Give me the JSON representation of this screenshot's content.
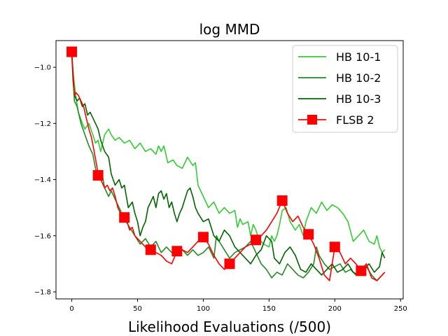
{
  "chart_data": {
    "type": "line",
    "title": "log MMD",
    "xlabel": "Likelihood Evaluations (/500)",
    "ylabel": "",
    "xlim": [
      -12,
      252
    ],
    "ylim": [
      -1.825,
      -0.905
    ],
    "xticks": [
      0,
      50,
      100,
      150,
      200,
      250
    ],
    "yticks": [
      -1.0,
      -1.2,
      -1.4,
      -1.6,
      -1.8
    ],
    "xtick_labels": [
      "0",
      "50",
      "100",
      "150",
      "200",
      "250"
    ],
    "ytick_labels": [
      "−1.0",
      "−1.2",
      "−1.4",
      "−1.6",
      "−1.8"
    ],
    "legend_position": "top-right",
    "series": [
      {
        "name": "HB 10-1",
        "color": "#32cd32",
        "marker": "none",
        "points": [
          [
            0,
            -0.95
          ],
          [
            1,
            -1.02
          ],
          [
            3,
            -1.1
          ],
          [
            5,
            -1.16
          ],
          [
            8,
            -1.2
          ],
          [
            10,
            -1.22
          ],
          [
            13,
            -1.2
          ],
          [
            16,
            -1.24
          ],
          [
            18,
            -1.27
          ],
          [
            20,
            -1.26
          ],
          [
            22,
            -1.3
          ],
          [
            25,
            -1.24
          ],
          [
            28,
            -1.22
          ],
          [
            30,
            -1.24
          ],
          [
            33,
            -1.26
          ],
          [
            36,
            -1.25
          ],
          [
            40,
            -1.27
          ],
          [
            44,
            -1.26
          ],
          [
            48,
            -1.29
          ],
          [
            52,
            -1.27
          ],
          [
            56,
            -1.3
          ],
          [
            60,
            -1.29
          ],
          [
            64,
            -1.31
          ],
          [
            66,
            -1.28
          ],
          [
            68,
            -1.3
          ],
          [
            70,
            -1.28
          ],
          [
            73,
            -1.34
          ],
          [
            77,
            -1.33
          ],
          [
            80,
            -1.35
          ],
          [
            84,
            -1.36
          ],
          [
            88,
            -1.32
          ],
          [
            92,
            -1.35
          ],
          [
            94,
            -1.34
          ],
          [
            96,
            -1.42
          ],
          [
            100,
            -1.46
          ],
          [
            104,
            -1.5
          ],
          [
            108,
            -1.48
          ],
          [
            112,
            -1.52
          ],
          [
            116,
            -1.5
          ],
          [
            120,
            -1.52
          ],
          [
            124,
            -1.51
          ],
          [
            126,
            -1.57
          ],
          [
            128,
            -1.54
          ],
          [
            130,
            -1.56
          ],
          [
            134,
            -1.55
          ],
          [
            136,
            -1.6
          ],
          [
            138,
            -1.56
          ],
          [
            140,
            -1.58
          ],
          [
            142,
            -1.61
          ],
          [
            146,
            -1.63
          ],
          [
            150,
            -1.64
          ],
          [
            152,
            -1.6
          ],
          [
            154,
            -1.62
          ],
          [
            156,
            -1.6
          ],
          [
            158,
            -1.56
          ],
          [
            160,
            -1.51
          ],
          [
            163,
            -1.5
          ],
          [
            166,
            -1.55
          ],
          [
            170,
            -1.58
          ],
          [
            173,
            -1.56
          ],
          [
            176,
            -1.6
          ],
          [
            178,
            -1.55
          ],
          [
            182,
            -1.5
          ],
          [
            186,
            -1.52
          ],
          [
            190,
            -1.48
          ],
          [
            194,
            -1.51
          ],
          [
            198,
            -1.49
          ],
          [
            202,
            -1.5
          ],
          [
            206,
            -1.52
          ],
          [
            210,
            -1.55
          ],
          [
            214,
            -1.62
          ],
          [
            218,
            -1.6
          ],
          [
            222,
            -1.58
          ],
          [
            226,
            -1.62
          ],
          [
            230,
            -1.63
          ],
          [
            232,
            -1.6
          ],
          [
            234,
            -1.64
          ],
          [
            236,
            -1.66
          ],
          [
            238,
            -1.65
          ]
        ]
      },
      {
        "name": "HB 10-2",
        "color": "#228b22",
        "marker": "none",
        "points": [
          [
            0,
            -0.95
          ],
          [
            1,
            -1.03
          ],
          [
            2,
            -1.12
          ],
          [
            4,
            -1.14
          ],
          [
            7,
            -1.2
          ],
          [
            10,
            -1.24
          ],
          [
            13,
            -1.28
          ],
          [
            16,
            -1.31
          ],
          [
            18,
            -1.36
          ],
          [
            20,
            -1.4
          ],
          [
            23,
            -1.38
          ],
          [
            25,
            -1.43
          ],
          [
            28,
            -1.46
          ],
          [
            30,
            -1.44
          ],
          [
            33,
            -1.47
          ],
          [
            36,
            -1.5
          ],
          [
            40,
            -1.54
          ],
          [
            44,
            -1.57
          ],
          [
            48,
            -1.6
          ],
          [
            52,
            -1.63
          ],
          [
            56,
            -1.61
          ],
          [
            60,
            -1.64
          ],
          [
            64,
            -1.62
          ],
          [
            68,
            -1.66
          ],
          [
            72,
            -1.64
          ],
          [
            76,
            -1.66
          ],
          [
            80,
            -1.64
          ],
          [
            84,
            -1.65
          ],
          [
            88,
            -1.67
          ],
          [
            92,
            -1.65
          ],
          [
            96,
            -1.67
          ],
          [
            100,
            -1.66
          ],
          [
            104,
            -1.64
          ],
          [
            108,
            -1.68
          ],
          [
            110,
            -1.6
          ],
          [
            112,
            -1.62
          ],
          [
            116,
            -1.65
          ],
          [
            120,
            -1.68
          ],
          [
            124,
            -1.66
          ],
          [
            128,
            -1.65
          ],
          [
            132,
            -1.64
          ],
          [
            136,
            -1.62
          ],
          [
            140,
            -1.66
          ],
          [
            144,
            -1.7
          ],
          [
            148,
            -1.72
          ],
          [
            152,
            -1.75
          ],
          [
            156,
            -1.73
          ],
          [
            160,
            -1.74
          ],
          [
            164,
            -1.7
          ],
          [
            168,
            -1.72
          ],
          [
            172,
            -1.74
          ],
          [
            176,
            -1.75
          ],
          [
            180,
            -1.73
          ],
          [
            184,
            -1.7
          ],
          [
            186,
            -1.64
          ],
          [
            188,
            -1.67
          ],
          [
            192,
            -1.7
          ],
          [
            196,
            -1.72
          ],
          [
            200,
            -1.71
          ],
          [
            204,
            -1.7
          ],
          [
            208,
            -1.73
          ],
          [
            212,
            -1.72
          ],
          [
            216,
            -1.74
          ],
          [
            220,
            -1.73
          ],
          [
            224,
            -1.71
          ],
          [
            228,
            -1.74
          ],
          [
            232,
            -1.76
          ],
          [
            236,
            -1.74
          ],
          [
            238,
            -1.73
          ]
        ]
      },
      {
        "name": "HB 10-3",
        "color": "#006400",
        "marker": "none",
        "points": [
          [
            0,
            -0.95
          ],
          [
            1,
            -1.05
          ],
          [
            2,
            -1.1
          ],
          [
            4,
            -1.12
          ],
          [
            6,
            -1.11
          ],
          [
            8,
            -1.14
          ],
          [
            10,
            -1.13
          ],
          [
            12,
            -1.17
          ],
          [
            14,
            -1.16
          ],
          [
            16,
            -1.18
          ],
          [
            18,
            -1.2
          ],
          [
            20,
            -1.22
          ],
          [
            22,
            -1.26
          ],
          [
            25,
            -1.3
          ],
          [
            28,
            -1.32
          ],
          [
            30,
            -1.38
          ],
          [
            33,
            -1.42
          ],
          [
            36,
            -1.4
          ],
          [
            38,
            -1.43
          ],
          [
            40,
            -1.42
          ],
          [
            43,
            -1.5
          ],
          [
            46,
            -1.48
          ],
          [
            48,
            -1.52
          ],
          [
            50,
            -1.55
          ],
          [
            52,
            -1.6
          ],
          [
            54,
            -1.57
          ],
          [
            56,
            -1.55
          ],
          [
            58,
            -1.5
          ],
          [
            60,
            -1.48
          ],
          [
            62,
            -1.46
          ],
          [
            64,
            -1.5
          ],
          [
            66,
            -1.45
          ],
          [
            68,
            -1.44
          ],
          [
            70,
            -1.47
          ],
          [
            72,
            -1.45
          ],
          [
            74,
            -1.5
          ],
          [
            76,
            -1.48
          ],
          [
            78,
            -1.52
          ],
          [
            80,
            -1.55
          ],
          [
            82,
            -1.52
          ],
          [
            84,
            -1.5
          ],
          [
            86,
            -1.47
          ],
          [
            88,
            -1.44
          ],
          [
            90,
            -1.43
          ],
          [
            92,
            -1.46
          ],
          [
            94,
            -1.5
          ],
          [
            96,
            -1.52
          ],
          [
            100,
            -1.55
          ],
          [
            104,
            -1.54
          ],
          [
            108,
            -1.6
          ],
          [
            112,
            -1.62
          ],
          [
            116,
            -1.58
          ],
          [
            120,
            -1.6
          ],
          [
            124,
            -1.64
          ],
          [
            128,
            -1.66
          ],
          [
            132,
            -1.68
          ],
          [
            136,
            -1.7
          ],
          [
            140,
            -1.67
          ],
          [
            144,
            -1.65
          ],
          [
            148,
            -1.6
          ],
          [
            152,
            -1.62
          ],
          [
            154,
            -1.68
          ],
          [
            158,
            -1.7
          ],
          [
            162,
            -1.66
          ],
          [
            166,
            -1.64
          ],
          [
            170,
            -1.67
          ],
          [
            174,
            -1.72
          ],
          [
            178,
            -1.73
          ],
          [
            182,
            -1.7
          ],
          [
            186,
            -1.72
          ],
          [
            190,
            -1.74
          ],
          [
            194,
            -1.72
          ],
          [
            198,
            -1.7
          ],
          [
            202,
            -1.73
          ],
          [
            206,
            -1.72
          ],
          [
            210,
            -1.7
          ],
          [
            214,
            -1.73
          ],
          [
            218,
            -1.74
          ],
          [
            222,
            -1.72
          ],
          [
            226,
            -1.7
          ],
          [
            230,
            -1.73
          ],
          [
            234,
            -1.71
          ],
          [
            236,
            -1.66
          ],
          [
            238,
            -1.68
          ]
        ]
      },
      {
        "name": "FLSB 2",
        "color": "#ff0000",
        "marker": "square",
        "marker_x": [
          0,
          20,
          40,
          60,
          80,
          100,
          120,
          140,
          160,
          180,
          200,
          220
        ],
        "points": [
          [
            0,
            -0.945
          ],
          [
            1,
            -1.02
          ],
          [
            2,
            -1.1
          ],
          [
            3,
            -1.09
          ],
          [
            5,
            -1.1
          ],
          [
            7,
            -1.12
          ],
          [
            9,
            -1.14
          ],
          [
            11,
            -1.18
          ],
          [
            13,
            -1.22
          ],
          [
            15,
            -1.25
          ],
          [
            17,
            -1.3
          ],
          [
            19,
            -1.35
          ],
          [
            20,
            -1.385
          ],
          [
            22,
            -1.4
          ],
          [
            25,
            -1.43
          ],
          [
            27,
            -1.42
          ],
          [
            29,
            -1.44
          ],
          [
            31,
            -1.43
          ],
          [
            33,
            -1.46
          ],
          [
            35,
            -1.5
          ],
          [
            38,
            -1.53
          ],
          [
            40,
            -1.535
          ],
          [
            42,
            -1.55
          ],
          [
            44,
            -1.58
          ],
          [
            46,
            -1.57
          ],
          [
            48,
            -1.6
          ],
          [
            52,
            -1.62
          ],
          [
            56,
            -1.64
          ],
          [
            60,
            -1.65
          ],
          [
            64,
            -1.66
          ],
          [
            68,
            -1.67
          ],
          [
            72,
            -1.69
          ],
          [
            76,
            -1.7
          ],
          [
            80,
            -1.655
          ],
          [
            84,
            -1.65
          ],
          [
            88,
            -1.66
          ],
          [
            92,
            -1.64
          ],
          [
            96,
            -1.62
          ],
          [
            100,
            -1.605
          ],
          [
            104,
            -1.63
          ],
          [
            108,
            -1.67
          ],
          [
            112,
            -1.7
          ],
          [
            116,
            -1.72
          ],
          [
            120,
            -1.7
          ],
          [
            124,
            -1.68
          ],
          [
            128,
            -1.66
          ],
          [
            132,
            -1.64
          ],
          [
            136,
            -1.63
          ],
          [
            140,
            -1.615
          ],
          [
            144,
            -1.6
          ],
          [
            148,
            -1.58
          ],
          [
            152,
            -1.55
          ],
          [
            156,
            -1.52
          ],
          [
            160,
            -1.475
          ],
          [
            164,
            -1.52
          ],
          [
            168,
            -1.55
          ],
          [
            172,
            -1.53
          ],
          [
            176,
            -1.57
          ],
          [
            180,
            -1.595
          ],
          [
            184,
            -1.63
          ],
          [
            188,
            -1.68
          ],
          [
            192,
            -1.74
          ],
          [
            196,
            -1.76
          ],
          [
            200,
            -1.64
          ],
          [
            204,
            -1.66
          ],
          [
            208,
            -1.7
          ],
          [
            212,
            -1.68
          ],
          [
            216,
            -1.7
          ],
          [
            220,
            -1.725
          ],
          [
            224,
            -1.7
          ],
          [
            228,
            -1.75
          ],
          [
            232,
            -1.76
          ],
          [
            236,
            -1.74
          ],
          [
            238,
            -1.73
          ]
        ]
      }
    ]
  }
}
